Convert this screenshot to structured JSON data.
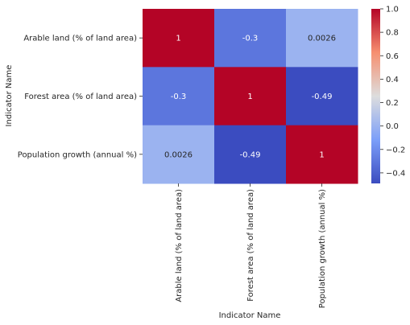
{
  "chart_data": {
    "type": "heatmap",
    "title": "",
    "xlabel": "Indicator Name",
    "ylabel": "Indicator Name",
    "row_labels": [
      "Arable land (% of land area)",
      "Forest area (% of land area)",
      "Population growth (annual %)"
    ],
    "col_labels": [
      "Arable land (% of land area)",
      "Forest area (% of land area)",
      "Population growth (annual %)"
    ],
    "values": [
      [
        1,
        -0.3,
        0.0026
      ],
      [
        -0.3,
        1,
        -0.49
      ],
      [
        0.0026,
        -0.49,
        1
      ]
    ],
    "annotations": [
      [
        "1",
        "-0.3",
        "0.0026"
      ],
      [
        "-0.3",
        "1",
        "-0.49"
      ],
      [
        "0.0026",
        "-0.49",
        "1"
      ]
    ],
    "colormap": "coolwarm",
    "colorbar": {
      "range": [
        -0.49,
        1.0
      ],
      "ticks": [
        1.0,
        0.8,
        0.6,
        0.4,
        0.2,
        0.0,
        -0.2,
        -0.4
      ],
      "tick_labels": [
        "1.0",
        "0.8",
        "0.6",
        "0.4",
        "0.2",
        "0.0",
        "−0.2",
        "−0.4"
      ]
    },
    "legend": "colorbar-right",
    "grid": false
  }
}
